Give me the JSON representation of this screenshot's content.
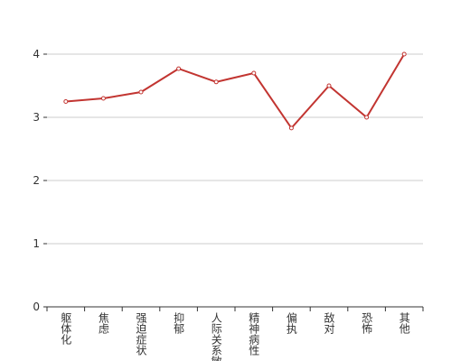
{
  "chart_data": {
    "type": "line",
    "categories": [
      "躯体化",
      "焦虑",
      "强迫症状",
      "抑郁",
      "人际关系敏感",
      "精神病性",
      "偏执",
      "敌对",
      "恐怖",
      "其他"
    ],
    "series": [
      {
        "values": [
          3.25,
          3.3,
          3.4,
          3.77,
          3.56,
          3.7,
          2.83,
          3.5,
          3.0,
          4.0
        ],
        "color": "#c23531"
      }
    ],
    "ylim": [
      0,
      4
    ],
    "yticks": [
      0,
      1,
      2,
      3,
      4
    ],
    "grid": true
  }
}
